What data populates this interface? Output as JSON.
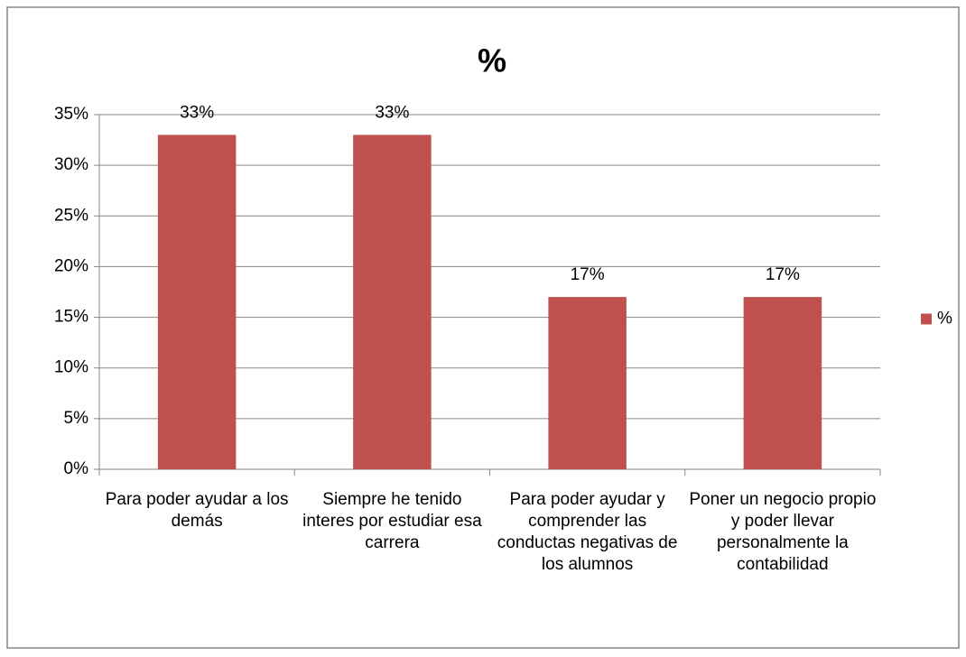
{
  "chart_data": {
    "type": "bar",
    "title": "%",
    "categories": [
      "Para poder ayudar a los demás",
      "Siempre he tenido interes por estudiar esa carrera",
      "Para poder ayudar y comprender las conductas negativas de los alumnos",
      "Poner un negocio propio y poder llevar personalmente la contabilidad"
    ],
    "series": [
      {
        "name": "%",
        "color": "#c0504d",
        "values": [
          33,
          33,
          17,
          17
        ],
        "value_labels": [
          "33%",
          "33%",
          "17%",
          "17%"
        ]
      }
    ],
    "ylim": [
      0,
      35
    ],
    "yticks": [
      {
        "value": 0,
        "label": "0%"
      },
      {
        "value": 5,
        "label": "5%"
      },
      {
        "value": 10,
        "label": "10%"
      },
      {
        "value": 15,
        "label": "15%"
      },
      {
        "value": 20,
        "label": "20%"
      },
      {
        "value": 25,
        "label": "25%"
      },
      {
        "value": 30,
        "label": "30%"
      },
      {
        "value": 35,
        "label": "35%"
      }
    ],
    "grid": true,
    "legend": "right"
  }
}
